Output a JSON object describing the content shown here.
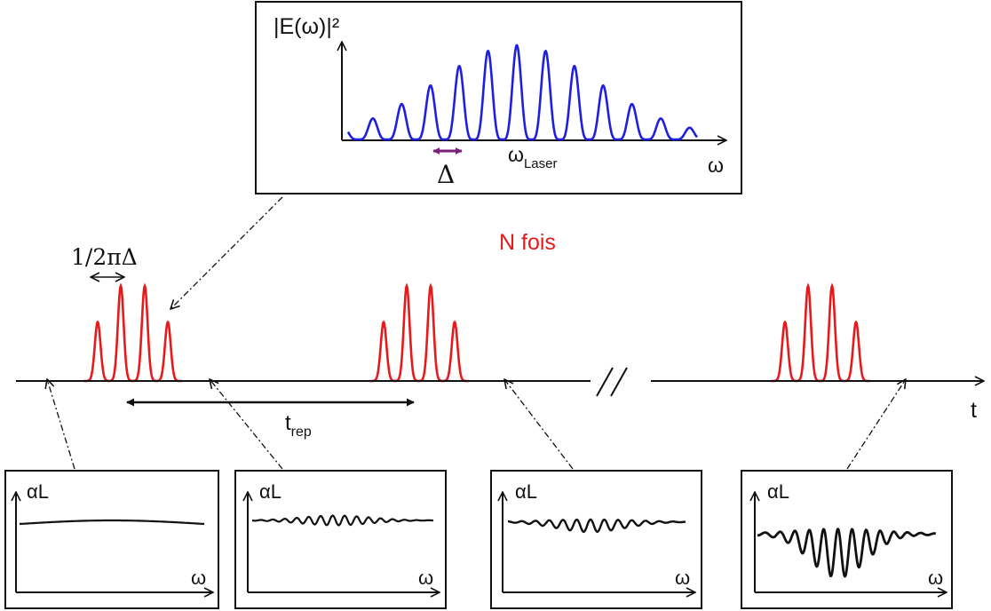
{
  "spectrum_panel": {
    "y_label": "|E(ω)|²",
    "x_label": "ω",
    "center_label": "ω",
    "center_subscript": "Laser",
    "spacing_label": "Δ",
    "line_color": "#1f1fe0",
    "spacing_arrow_color": "#7a1f7a"
  },
  "time_axis": {
    "axis_label": "t",
    "break_mark": "//",
    "repetition_label": "t",
    "repetition_subscript": "rep",
    "pulse_spacing_label": "1/2πΔ",
    "repeat_label": "N fois",
    "repeat_color": "#e8191b",
    "pulse_color": "#e8191b"
  },
  "absorption_panels": [
    {
      "y_label": "αL",
      "x_label": "ω"
    },
    {
      "y_label": "αL",
      "x_label": "ω"
    },
    {
      "y_label": "αL",
      "x_label": "ω"
    },
    {
      "y_label": "αL",
      "x_label": "ω"
    }
  ]
}
